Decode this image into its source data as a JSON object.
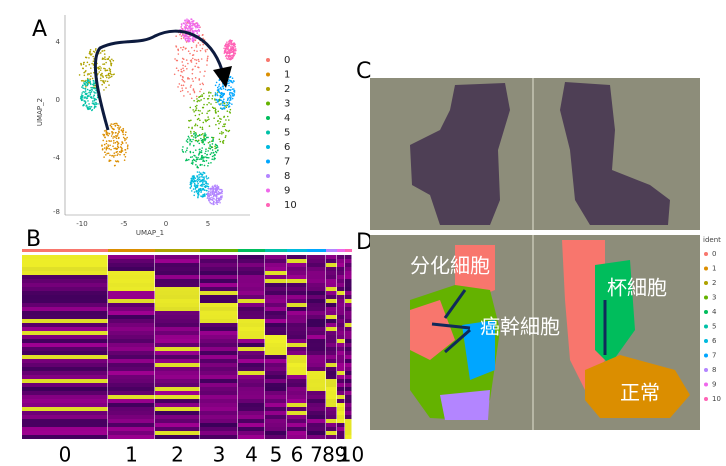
{
  "panels": {
    "a": {
      "label": "A",
      "x_label": "UMAP_1",
      "y_label": "UMAP_2",
      "x_ticks": [
        "-10",
        "-5",
        "0",
        "5"
      ],
      "y_ticks": [
        "4",
        "0",
        "-4",
        "-8"
      ],
      "legend": [
        "0",
        "1",
        "2",
        "3",
        "4",
        "5",
        "6",
        "7",
        "8",
        "9",
        "10"
      ]
    },
    "b": {
      "label": "B",
      "cluster_labels": [
        "0",
        "1",
        "2",
        "3",
        "4",
        "5",
        "6",
        "7",
        "8",
        "9",
        "10"
      ]
    },
    "c": {
      "label": "C"
    },
    "d": {
      "label": "D",
      "legend_title": "ident",
      "legend": [
        "0",
        "1",
        "2",
        "3",
        "4",
        "5",
        "6",
        "7",
        "8",
        "9",
        "10"
      ],
      "annotations": [
        "分化細胞",
        "癌幹細胞",
        "杯細胞",
        "正常"
      ]
    }
  },
  "cluster_colors": [
    "#F8766D",
    "#DB8E00",
    "#AEA200",
    "#64B200",
    "#00BD5C",
    "#00C1A7",
    "#00BADE",
    "#00A6FF",
    "#B385FF",
    "#EF67EB",
    "#FF63B6"
  ]
}
